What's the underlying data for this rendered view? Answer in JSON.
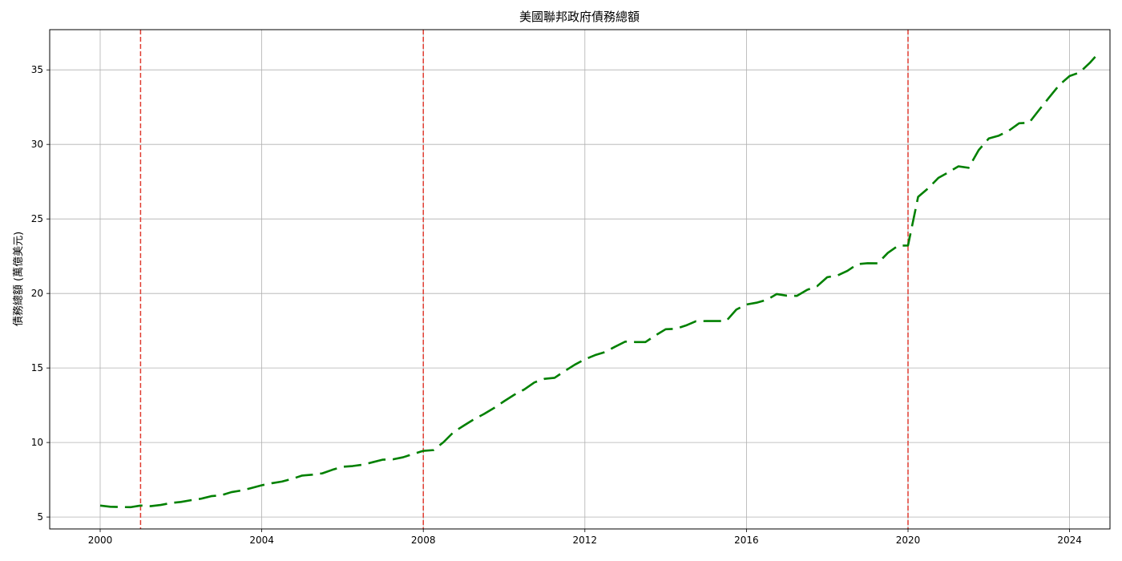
{
  "chart_data": {
    "type": "line",
    "title": "美國聯邦政府債務總額",
    "xlabel": "",
    "ylabel": "債務總額 (萬億美元)",
    "xlim": [
      1998.75,
      2025.0
    ],
    "ylim": [
      4.2,
      37.7
    ],
    "grid": true,
    "x_ticks": [
      2000,
      2004,
      2008,
      2012,
      2016,
      2020,
      2024
    ],
    "y_ticks": [
      5,
      10,
      15,
      20,
      25,
      30,
      35
    ],
    "vertical_markers": [
      {
        "x": 2001.0,
        "color": "#e03c31",
        "style": "dashed"
      },
      {
        "x": 2008.0,
        "color": "#e03c31",
        "style": "dashed"
      },
      {
        "x": 2020.0,
        "color": "#e03c31",
        "style": "dashed"
      }
    ],
    "series": [
      {
        "color": "#008000",
        "style": "dashed",
        "points": [
          [
            2000.0,
            5.77
          ],
          [
            2000.25,
            5.69
          ],
          [
            2000.5,
            5.67
          ],
          [
            2000.75,
            5.66
          ],
          [
            2001.0,
            5.77
          ],
          [
            2001.25,
            5.73
          ],
          [
            2001.5,
            5.81
          ],
          [
            2001.75,
            5.94
          ],
          [
            2002.0,
            6.01
          ],
          [
            2002.25,
            6.13
          ],
          [
            2002.5,
            6.23
          ],
          [
            2002.75,
            6.4
          ],
          [
            2003.0,
            6.46
          ],
          [
            2003.25,
            6.67
          ],
          [
            2003.5,
            6.78
          ],
          [
            2003.75,
            6.95
          ],
          [
            2004.0,
            7.13
          ],
          [
            2004.25,
            7.27
          ],
          [
            2004.5,
            7.38
          ],
          [
            2004.75,
            7.56
          ],
          [
            2005.0,
            7.78
          ],
          [
            2005.25,
            7.84
          ],
          [
            2005.5,
            7.93
          ],
          [
            2005.75,
            8.17
          ],
          [
            2006.0,
            8.37
          ],
          [
            2006.25,
            8.42
          ],
          [
            2006.5,
            8.51
          ],
          [
            2006.75,
            8.68
          ],
          [
            2007.0,
            8.85
          ],
          [
            2007.25,
            8.87
          ],
          [
            2007.5,
            9.01
          ],
          [
            2007.75,
            9.23
          ],
          [
            2008.0,
            9.44
          ],
          [
            2008.25,
            9.49
          ],
          [
            2008.5,
            10.02
          ],
          [
            2008.75,
            10.7
          ],
          [
            2009.0,
            11.13
          ],
          [
            2009.25,
            11.55
          ],
          [
            2009.5,
            11.91
          ],
          [
            2009.75,
            12.31
          ],
          [
            2010.0,
            12.77
          ],
          [
            2010.25,
            13.2
          ],
          [
            2010.5,
            13.56
          ],
          [
            2010.75,
            14.03
          ],
          [
            2011.0,
            14.27
          ],
          [
            2011.25,
            14.34
          ],
          [
            2011.5,
            14.79
          ],
          [
            2011.75,
            15.22
          ],
          [
            2012.0,
            15.58
          ],
          [
            2012.25,
            15.86
          ],
          [
            2012.5,
            16.07
          ],
          [
            2012.75,
            16.43
          ],
          [
            2013.0,
            16.77
          ],
          [
            2013.25,
            16.74
          ],
          [
            2013.5,
            16.74
          ],
          [
            2013.75,
            17.19
          ],
          [
            2014.0,
            17.6
          ],
          [
            2014.25,
            17.63
          ],
          [
            2014.5,
            17.85
          ],
          [
            2014.75,
            18.14
          ],
          [
            2015.0,
            18.15
          ],
          [
            2015.25,
            18.15
          ],
          [
            2015.5,
            18.15
          ],
          [
            2015.75,
            18.92
          ],
          [
            2016.0,
            19.26
          ],
          [
            2016.25,
            19.38
          ],
          [
            2016.5,
            19.57
          ],
          [
            2016.75,
            19.96
          ],
          [
            2017.0,
            19.85
          ],
          [
            2017.25,
            19.84
          ],
          [
            2017.5,
            20.24
          ],
          [
            2017.75,
            20.49
          ],
          [
            2018.0,
            21.09
          ],
          [
            2018.25,
            21.2
          ],
          [
            2018.5,
            21.52
          ],
          [
            2018.75,
            21.97
          ],
          [
            2019.0,
            22.03
          ],
          [
            2019.25,
            22.02
          ],
          [
            2019.5,
            22.72
          ],
          [
            2019.75,
            23.2
          ],
          [
            2020.0,
            23.22
          ],
          [
            2020.25,
            26.48
          ],
          [
            2020.5,
            27.06
          ],
          [
            2020.75,
            27.75
          ],
          [
            2021.0,
            28.13
          ],
          [
            2021.25,
            28.53
          ],
          [
            2021.5,
            28.43
          ],
          [
            2021.75,
            29.62
          ],
          [
            2022.0,
            30.4
          ],
          [
            2022.25,
            30.59
          ],
          [
            2022.5,
            30.93
          ],
          [
            2022.75,
            31.42
          ],
          [
            2023.0,
            31.46
          ],
          [
            2023.25,
            32.33
          ],
          [
            2023.5,
            33.17
          ],
          [
            2023.75,
            34.0
          ],
          [
            2024.0,
            34.59
          ],
          [
            2024.25,
            34.83
          ],
          [
            2024.5,
            35.47
          ],
          [
            2024.75,
            36.22
          ]
        ]
      }
    ]
  }
}
